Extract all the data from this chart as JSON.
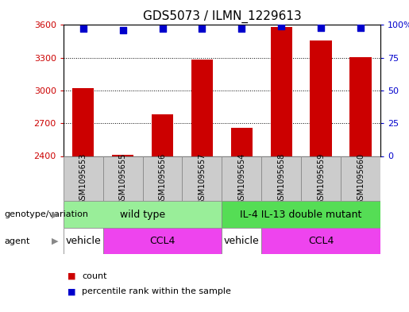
{
  "title": "GDS5073 / ILMN_1229613",
  "samples": [
    "GSM1095653",
    "GSM1095655",
    "GSM1095656",
    "GSM1095657",
    "GSM1095654",
    "GSM1095658",
    "GSM1095659",
    "GSM1095660"
  ],
  "counts": [
    3020,
    2410,
    2780,
    3285,
    2660,
    3580,
    3460,
    3305
  ],
  "percentiles": [
    97,
    96,
    97,
    97,
    97,
    99,
    98,
    98
  ],
  "ylim_left": [
    2400,
    3600
  ],
  "ylim_right": [
    0,
    100
  ],
  "yticks_left": [
    2400,
    2700,
    3000,
    3300,
    3600
  ],
  "yticks_right": [
    0,
    25,
    50,
    75,
    100
  ],
  "bar_color": "#cc0000",
  "dot_color": "#0000cc",
  "background_color": "#ffffff",
  "sample_box_color": "#cccccc",
  "genotype_groups": [
    {
      "label": "wild type",
      "start": 0,
      "end": 4,
      "color": "#99ee99"
    },
    {
      "label": "IL-4 IL-13 double mutant",
      "start": 4,
      "end": 8,
      "color": "#55dd55"
    }
  ],
  "agent_groups": [
    {
      "label": "vehicle",
      "start": 0,
      "end": 1,
      "color": "#ffffff"
    },
    {
      "label": "CCL4",
      "start": 1,
      "end": 4,
      "color": "#ee44ee"
    },
    {
      "label": "vehicle",
      "start": 4,
      "end": 5,
      "color": "#ffffff"
    },
    {
      "label": "CCL4",
      "start": 5,
      "end": 8,
      "color": "#ee44ee"
    }
  ],
  "legend_count_label": "count",
  "legend_pct_label": "percentile rank within the sample",
  "label_genotype": "genotype/variation",
  "label_agent": "agent",
  "bar_width": 0.55,
  "dot_size": 30,
  "tick_fontsize": 8,
  "title_fontsize": 11,
  "annot_fontsize": 9
}
